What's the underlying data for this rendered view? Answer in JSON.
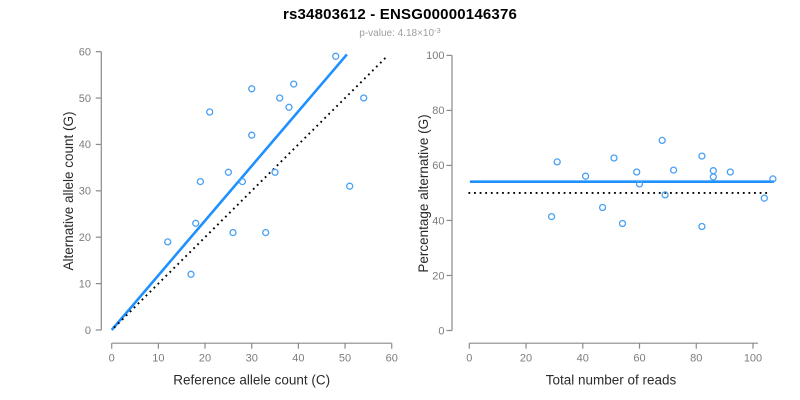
{
  "header": {
    "title": "rs34803612 - ENSG00000146376",
    "subtitle": {
      "text": "p-value: 4.18×10",
      "exponent": "-3"
    }
  },
  "colors": {
    "regression_blue": "#1e90ff",
    "point_blue": "#4aa0f2",
    "dotted_black": "#000000",
    "axis_gray": "#8a8a8a",
    "tick_label_gray": "#7d7d7d",
    "axis_title_dark": "#2b2b2b",
    "subtitle_gray": "#9e9e9e",
    "background": "#ffffff"
  },
  "chart_data": [
    {
      "type": "scatter",
      "panel": "left",
      "title": "",
      "xlabel": "Reference allele count (C)",
      "ylabel": "Alternative allele count (G)",
      "xlim": [
        0,
        60
      ],
      "ylim": [
        0,
        60
      ],
      "xticks": [
        0,
        10,
        20,
        30,
        40,
        50,
        60
      ],
      "yticks": [
        0,
        10,
        20,
        30,
        40,
        50,
        60
      ],
      "grid": false,
      "points_xy": [
        [
          12,
          19
        ],
        [
          17,
          12
        ],
        [
          18,
          23
        ],
        [
          19,
          32
        ],
        [
          21,
          47
        ],
        [
          25,
          34
        ],
        [
          26,
          21
        ],
        [
          28,
          32
        ],
        [
          30,
          42
        ],
        [
          30,
          52
        ],
        [
          33,
          21
        ],
        [
          35,
          34
        ],
        [
          36,
          50
        ],
        [
          38,
          48
        ],
        [
          39,
          53
        ],
        [
          48,
          59
        ],
        [
          51,
          31
        ],
        [
          54,
          50
        ]
      ],
      "lines": [
        {
          "name": "regression-line",
          "style": "solid",
          "color": "#1e90ff",
          "x1": 0,
          "y1": 0,
          "x2": 50.4,
          "y2": 59.4
        },
        {
          "name": "identity-line",
          "style": "dotted",
          "color": "#000000",
          "x1": 0.5,
          "y1": 0.5,
          "x2": 59.2,
          "y2": 59.2
        }
      ]
    },
    {
      "type": "scatter",
      "panel": "right",
      "title": "",
      "xlabel": "Total number of reads",
      "ylabel": "Percentage alternative (G)",
      "xlim": [
        0,
        108
      ],
      "ylim": [
        0,
        100
      ],
      "xticks": [
        0,
        20,
        40,
        60,
        80,
        100
      ],
      "yticks": [
        0,
        20,
        40,
        60,
        80,
        100
      ],
      "grid": false,
      "points_xy": [
        [
          29,
          41.4
        ],
        [
          31,
          61.3
        ],
        [
          41,
          56.1
        ],
        [
          47,
          44.7
        ],
        [
          51,
          62.7
        ],
        [
          54,
          38.9
        ],
        [
          59,
          57.6
        ],
        [
          60,
          53.3
        ],
        [
          68,
          69.1
        ],
        [
          69,
          49.3
        ],
        [
          72,
          58.3
        ],
        [
          82,
          37.8
        ],
        [
          82,
          63.4
        ],
        [
          86,
          55.8
        ],
        [
          86,
          58.1
        ],
        [
          92,
          57.6
        ],
        [
          104,
          48.1
        ],
        [
          107,
          55.1
        ]
      ],
      "lines": [
        {
          "name": "mean-line",
          "style": "solid",
          "color": "#1e90ff",
          "x1": 0.2,
          "y1": 54.1,
          "x2": 107.4,
          "y2": 54.1
        },
        {
          "name": "null-line",
          "style": "dotted",
          "color": "#000000",
          "x1": -0.3,
          "y1": 50,
          "x2": 106,
          "y2": 50
        }
      ]
    }
  ]
}
